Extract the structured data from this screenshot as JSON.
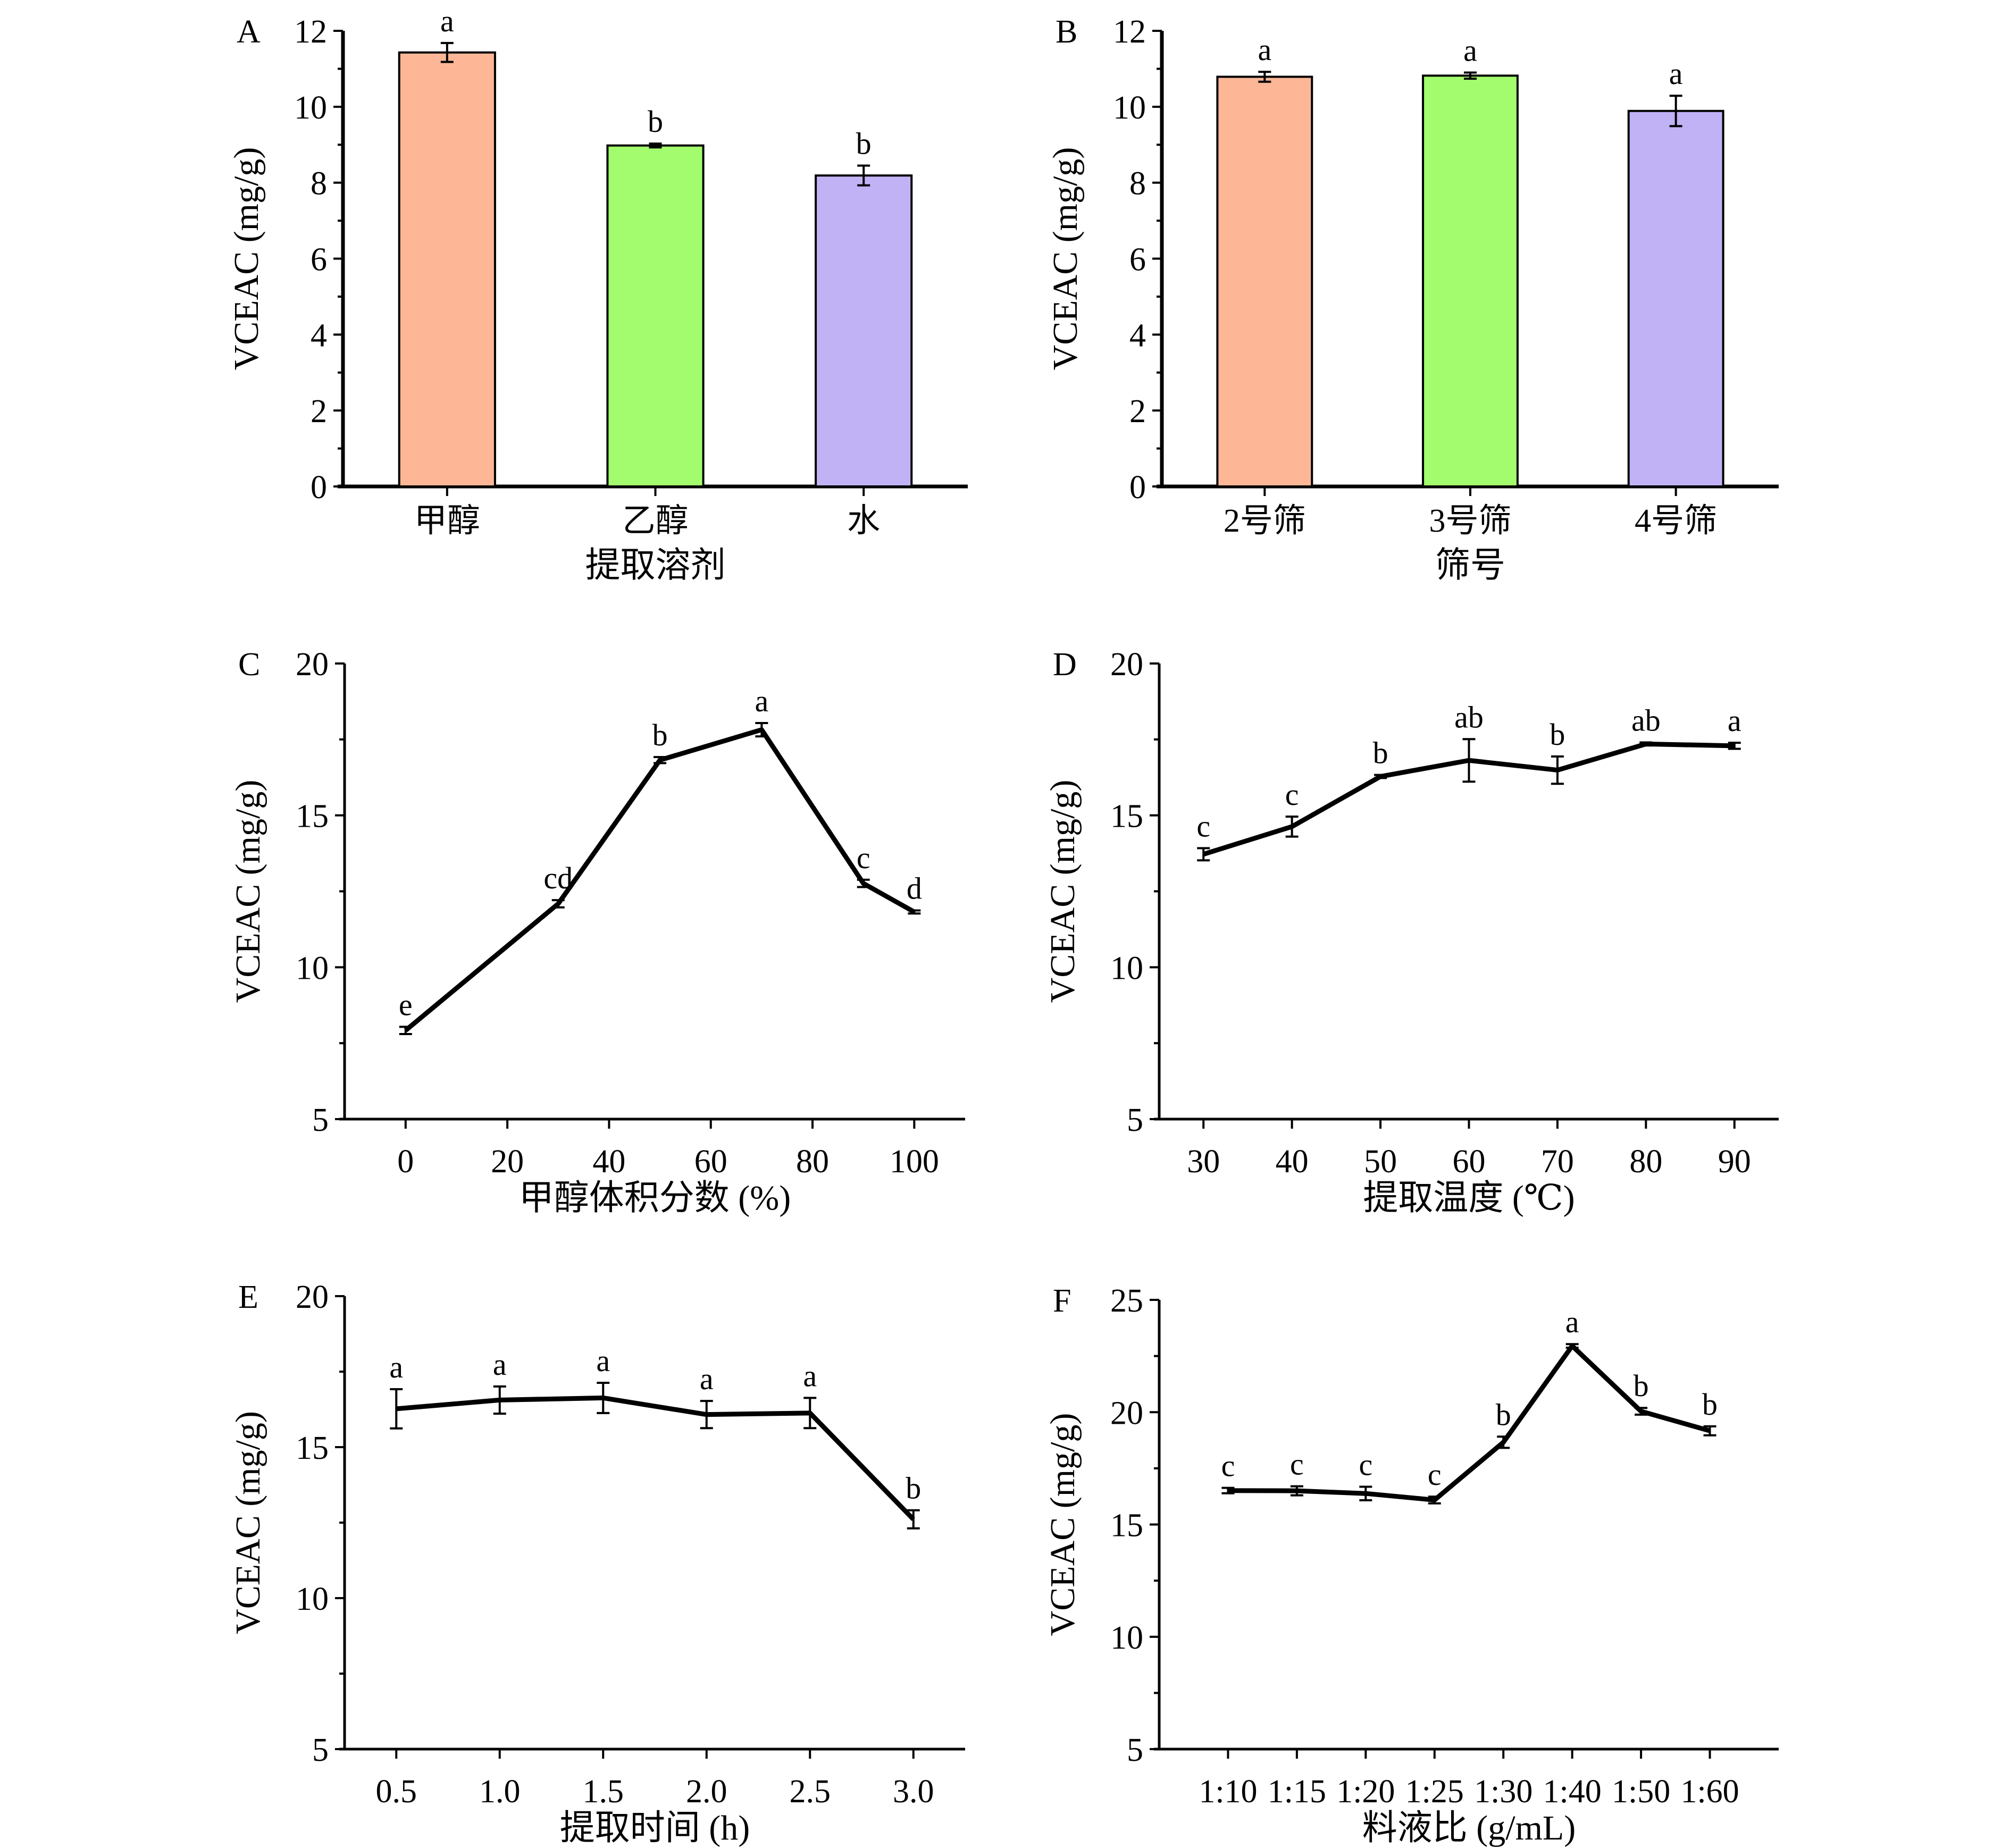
{
  "figure": {
    "panels": [
      "A",
      "B",
      "C",
      "D",
      "E",
      "F"
    ]
  },
  "chart_data": [
    {
      "panel": "A",
      "type": "bar",
      "title": "",
      "xlabel": "提取溶剂",
      "ylabel": "VCEAC (mg/g)",
      "ylim": [
        0,
        12
      ],
      "yticks": [
        "0",
        "2",
        "4",
        "6",
        "8",
        "10",
        "12"
      ],
      "categories": [
        "甲醇",
        "乙醇",
        "水"
      ],
      "values": [
        11.43,
        8.98,
        8.19
      ],
      "errors": [
        0.25,
        0.05,
        0.26
      ],
      "significance": [
        "a",
        "b",
        "b"
      ],
      "colors": [
        "#FDB797",
        "#A2FC6E",
        "#C1B2F6"
      ],
      "grid": false
    },
    {
      "panel": "B",
      "type": "bar",
      "title": "",
      "xlabel": "筛号",
      "ylabel": "VCEAC (mg/g)",
      "ylim": [
        0,
        12
      ],
      "yticks": [
        "0",
        "2",
        "4",
        "6",
        "8",
        "10",
        "12"
      ],
      "categories": [
        "2号筛",
        "3号筛",
        "4号筛"
      ],
      "values": [
        10.79,
        10.82,
        9.89
      ],
      "errors": [
        0.13,
        0.08,
        0.4
      ],
      "significance": [
        "a",
        "a",
        "a"
      ],
      "colors": [
        "#FDB797",
        "#A2FC6E",
        "#C1B2F6"
      ],
      "grid": false
    },
    {
      "panel": "C",
      "type": "line",
      "title": "",
      "xlabel": "甲醇体积分数 (%)",
      "ylabel": "VCEAC (mg/g)",
      "xlim": [
        -12,
        110
      ],
      "ylim": [
        5,
        20
      ],
      "xticks": [
        "0",
        "20",
        "40",
        "60",
        "80",
        "100"
      ],
      "yticks": [
        "5",
        "10",
        "15",
        "20"
      ],
      "x": [
        0,
        30,
        50,
        70,
        90,
        100
      ],
      "values": [
        7.92,
        12.09,
        16.82,
        17.82,
        12.76,
        11.82
      ],
      "errors": [
        0.12,
        0.12,
        0.1,
        0.22,
        0.12,
        0.05
      ],
      "significance": [
        "e",
        "cd",
        "b",
        "a",
        "c",
        "d"
      ],
      "grid": false
    },
    {
      "panel": "D",
      "type": "line",
      "title": "",
      "xlabel": "提取温度 (℃)",
      "ylabel": "VCEAC (mg/g)",
      "xlim": [
        25,
        95
      ],
      "ylim": [
        5,
        20
      ],
      "xticks": [
        "30",
        "40",
        "50",
        "60",
        "70",
        "80",
        "90"
      ],
      "yticks": [
        "5",
        "10",
        "15",
        "20"
      ],
      "x": [
        30,
        40,
        50,
        60,
        70,
        80,
        90
      ],
      "values": [
        13.72,
        14.63,
        16.28,
        16.81,
        16.49,
        17.35,
        17.29
      ],
      "errors": [
        0.2,
        0.33,
        0.05,
        0.7,
        0.45,
        0.05,
        0.1
      ],
      "significance": [
        "c",
        "c",
        "b",
        "ab",
        "b",
        "ab",
        "a"
      ],
      "grid": false
    },
    {
      "panel": "E",
      "type": "line",
      "title": "",
      "xlabel": "提取时间 (h)",
      "ylabel": "VCEAC (mg/g)",
      "xlim": [
        0.25,
        3.25
      ],
      "ylim": [
        5,
        20
      ],
      "xticks": [
        "0.5",
        "1.0",
        "1.5",
        "2.0",
        "2.5",
        "3.0"
      ],
      "yticks": [
        "5",
        "10",
        "15",
        "20"
      ],
      "x": [
        0.5,
        1.0,
        1.5,
        2.0,
        2.5,
        3.0
      ],
      "values": [
        16.27,
        16.56,
        16.63,
        16.08,
        16.13,
        12.61
      ],
      "errors": [
        0.65,
        0.45,
        0.5,
        0.45,
        0.5,
        0.3
      ],
      "significance": [
        "a",
        "a",
        "a",
        "a",
        "a",
        "b"
      ],
      "grid": false
    },
    {
      "panel": "F",
      "type": "line",
      "title": "",
      "xlabel": "料液比 (g/mL)",
      "ylabel": "VCEAC (mg/g)",
      "ylim": [
        5,
        25
      ],
      "yticks": [
        "5",
        "10",
        "15",
        "20",
        "25"
      ],
      "categories": [
        "1:10",
        "1:15",
        "1:20",
        "1:25",
        "1:30",
        "1:40",
        "1:50",
        "1:60"
      ],
      "values": [
        16.51,
        16.5,
        16.38,
        16.09,
        18.66,
        22.95,
        20.04,
        19.17
      ],
      "errors": [
        0.12,
        0.2,
        0.3,
        0.15,
        0.25,
        0.08,
        0.15,
        0.2
      ],
      "significance": [
        "c",
        "c",
        "c",
        "c",
        "b",
        "a",
        "b",
        "b"
      ],
      "grid": false
    }
  ]
}
